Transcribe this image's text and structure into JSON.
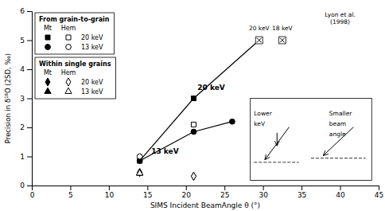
{
  "chart_data": {
    "type": "scatter",
    "x_label": "SIMS Incident BeamAngle θ (°)",
    "y_label": "Precision in δ¹⁸O (2SD, ‰)",
    "xlim": [
      0,
      45
    ],
    "ylim": [
      0,
      6
    ],
    "xticks": [
      0,
      5,
      10,
      15,
      20,
      25,
      30,
      35,
      40,
      45
    ],
    "yticks": [
      0,
      1,
      2,
      3,
      4,
      5,
      6
    ],
    "series": [
      {
        "type": "line",
        "color": "black",
        "line_style": "solid",
        "x": [
          14,
          21,
          29.5
        ],
        "y": [
          0.85,
          3.0,
          5.0
        ],
        "label": "20 keV",
        "label_x": 21.5,
        "label_y": 3.3
      },
      {
        "type": "line",
        "color": "black",
        "line_style": "solid",
        "x": [
          14,
          21,
          26
        ],
        "y": [
          0.85,
          1.85,
          2.2
        ],
        "label": "13 keV",
        "label_x": 15.5,
        "label_y": 1.1
      },
      {
        "type": "scatter",
        "group": "From grain-to-grain",
        "column": "Mt",
        "row": "20 keV",
        "marker": "square",
        "color": "black",
        "x": [
          14,
          21,
          29.5
        ],
        "y": [
          0.85,
          3.0,
          5.0
        ]
      },
      {
        "type": "scatter",
        "group": "From grain-to-grain",
        "column": "Hem",
        "row": "20 keV",
        "marker": "square",
        "color": "white",
        "x": [
          21
        ],
        "y": [
          2.1
        ]
      },
      {
        "type": "scatter",
        "group": "From grain-to-grain",
        "column": "Mt",
        "row": "13 keV",
        "marker": "circle",
        "color": "black",
        "x": [
          14,
          21
        ],
        "y": [
          0.85,
          1.85
        ]
      },
      {
        "type": "scatter",
        "group": "From grain-to-grain",
        "column": "Hem",
        "row": "13 keV",
        "marker": "circle",
        "color": "white",
        "x": [
          14
        ],
        "y": [
          1.0
        ]
      },
      {
        "type": "scatter",
        "group": "Within single grains",
        "column": "Mt",
        "row": "20 keV",
        "marker": "diamond",
        "color": "black",
        "x": [
          14,
          21
        ],
        "y": [
          0.45,
          0.32
        ]
      },
      {
        "type": "scatter",
        "group": "Within single grains",
        "column": "Hem",
        "row": "20 keV",
        "marker": "diamond",
        "color": "white",
        "x": [
          21
        ],
        "y": [
          0.32
        ]
      },
      {
        "type": "scatter",
        "group": "Within single grains",
        "column": "Mt",
        "row": "13 keV",
        "marker": "triangle",
        "color": "black",
        "x": [
          14
        ],
        "y": [
          0.42
        ]
      },
      {
        "type": "scatter",
        "group": "Within single grains",
        "column": "Hem",
        "row": "13 keV",
        "marker": "triangle",
        "color": "white",
        "x": [
          14
        ],
        "y": [
          0.42
        ]
      },
      {
        "type": "scatter",
        "marker": "circle",
        "color": "black",
        "x": [
          26
        ],
        "y": [
          2.2
        ]
      },
      {
        "type": "scatter",
        "marker": "boxed-x",
        "color": "white",
        "x": [
          29.5,
          32.5
        ],
        "y": [
          5.0,
          5.0
        ]
      }
    ],
    "annotations": [
      {
        "text": "20 keV",
        "x": 29.5,
        "y": 5.3
      },
      {
        "text": "18 keV",
        "x": 32.5,
        "y": 5.3
      },
      {
        "text": "Lyon et al.\n(1998)",
        "x": 40,
        "y": 5.5
      }
    ],
    "inset_labels": [
      [
        "Lower",
        "keV"
      ],
      [
        "Smaller",
        "beam",
        "angle"
      ]
    ]
  }
}
